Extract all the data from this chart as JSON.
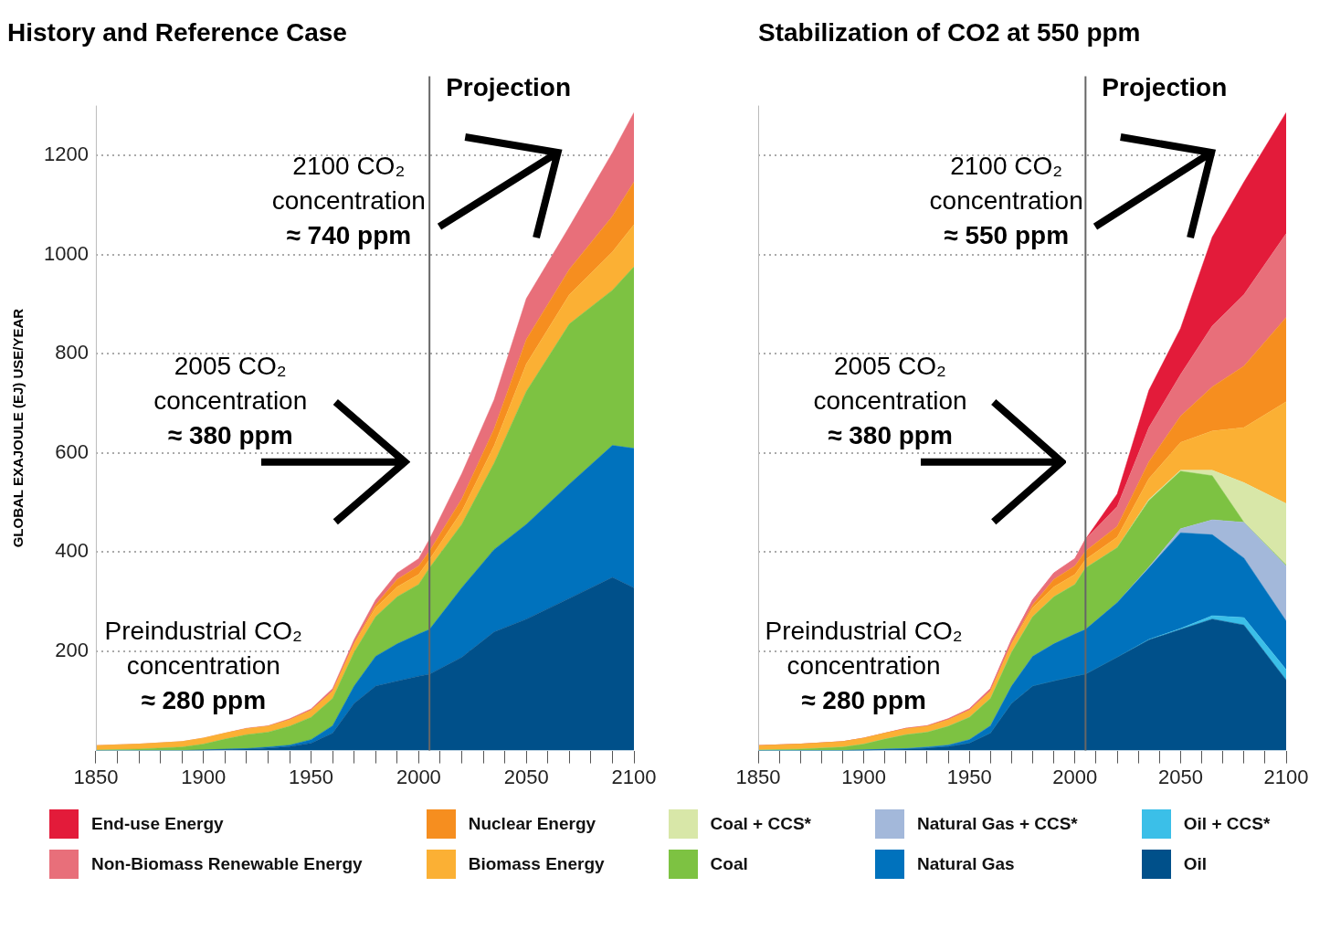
{
  "chart_data": [
    {
      "type": "area",
      "title": "History and Reference Case",
      "ylabel": "GLOBAL EXAJOULE (EJ) USE/YEAR",
      "stacked": true,
      "legend": "bottom",
      "grid": "y",
      "xlim": [
        1850,
        2100
      ],
      "ylim": [
        0,
        1300
      ],
      "xticks": [
        1850,
        {
          "value": 1860,
          "label": null
        },
        {
          "value": 1870,
          "label": null
        },
        {
          "value": 1880,
          "label": null
        },
        {
          "value": 1890,
          "label": null
        },
        1900,
        {
          "value": 1910,
          "label": null
        },
        {
          "value": 1920,
          "label": null
        },
        {
          "value": 1930,
          "label": null
        },
        {
          "value": 1940,
          "label": null
        },
        1950,
        {
          "value": 1960,
          "label": null
        },
        {
          "value": 1970,
          "label": null
        },
        {
          "value": 1980,
          "label": null
        },
        {
          "value": 1990,
          "label": null
        },
        2000,
        {
          "value": 2010,
          "label": null
        },
        {
          "value": 2020,
          "label": null
        },
        {
          "value": 2030,
          "label": null
        },
        {
          "value": 2040,
          "label": null
        },
        2050,
        {
          "value": 2060,
          "label": null
        },
        {
          "value": 2070,
          "label": null
        },
        {
          "value": 2080,
          "label": null
        },
        {
          "value": 2090,
          "label": null
        },
        2100
      ],
      "yticks": [
        200,
        400,
        600,
        800,
        1000,
        1200
      ],
      "x": [
        1850,
        1870,
        1890,
        1900,
        1910,
        1920,
        1930,
        1940,
        1950,
        1960,
        1970,
        1980,
        1990,
        2000,
        2005,
        2020,
        2035,
        2050,
        2070,
        2090,
        2100
      ],
      "series": [
        {
          "name": "Oil",
          "color": "#00508a",
          "values": [
            0,
            0,
            0,
            1,
            2,
            3,
            5,
            8,
            15,
            35,
            95,
            130,
            140,
            150,
            154,
            188,
            239,
            265,
            307,
            349,
            328
          ]
        },
        {
          "name": "Natural Gas",
          "color": "#0072bd",
          "values": [
            0,
            0,
            0,
            0,
            1,
            1,
            2,
            3,
            7,
            15,
            35,
            60,
            75,
            85,
            90,
            140,
            166,
            191,
            230,
            266,
            281
          ]
        },
        {
          "name": "Coal",
          "color": "#7dc242",
          "values": [
            1,
            3,
            7,
            12,
            20,
            28,
            30,
            38,
            45,
            55,
            68,
            80,
            95,
            100,
            124,
            128,
            174,
            268,
            323,
            313,
            366
          ]
        },
        {
          "name": "Biomass Energy",
          "color": "#fbb034",
          "values": [
            9,
            10,
            11,
            12,
            12,
            12,
            12,
            13,
            14,
            15,
            17,
            18,
            20,
            20,
            17,
            26,
            35,
            55,
            59,
            77,
            85
          ]
        },
        {
          "name": "Nuclear Energy",
          "color": "#f68e1f",
          "values": [
            0,
            0,
            0,
            0,
            0,
            0,
            0,
            0,
            0,
            0,
            1,
            6,
            15,
            17,
            17,
            25,
            34,
            50,
            51,
            72,
            86
          ]
        },
        {
          "name": "Non-Biomass Renewable Energy",
          "color": "#e86f7a",
          "values": [
            0,
            0,
            0,
            0,
            0,
            1,
            1,
            2,
            3,
            5,
            8,
            10,
            13,
            15,
            24,
            51,
            59,
            82,
            86,
            128,
            140
          ]
        }
      ],
      "ref_lines": [
        {
          "axis": "x",
          "value": 2005,
          "label": "Projection",
          "color": "#666666"
        }
      ],
      "annotations": [
        "2100 CO₂\nconcentration\n≈ 740 ppm",
        "2005 CO₂\nconcentration\n≈ 380 ppm",
        "Preindustrial CO₂\nconcentration\n≈ 280 ppm"
      ]
    },
    {
      "type": "area",
      "title": "Stabilization of CO2 at 550 ppm",
      "stacked": true,
      "legend": "bottom",
      "grid": "y",
      "tick_labels": "x",
      "xlim": [
        1850,
        2100
      ],
      "ylim": [
        0,
        1300
      ],
      "xticks": [
        1850,
        {
          "value": 1860,
          "label": null
        },
        {
          "value": 1870,
          "label": null
        },
        {
          "value": 1880,
          "label": null
        },
        {
          "value": 1890,
          "label": null
        },
        1900,
        {
          "value": 1910,
          "label": null
        },
        {
          "value": 1920,
          "label": null
        },
        {
          "value": 1930,
          "label": null
        },
        {
          "value": 1940,
          "label": null
        },
        1950,
        {
          "value": 1960,
          "label": null
        },
        {
          "value": 1970,
          "label": null
        },
        {
          "value": 1980,
          "label": null
        },
        {
          "value": 1990,
          "label": null
        },
        2000,
        {
          "value": 2010,
          "label": null
        },
        {
          "value": 2020,
          "label": null
        },
        {
          "value": 2030,
          "label": null
        },
        {
          "value": 2040,
          "label": null
        },
        2050,
        {
          "value": 2060,
          "label": null
        },
        {
          "value": 2070,
          "label": null
        },
        {
          "value": 2080,
          "label": null
        },
        {
          "value": 2090,
          "label": null
        },
        2100
      ],
      "yticks": [
        200,
        400,
        600,
        800,
        1000,
        1200
      ],
      "x": [
        1850,
        1870,
        1890,
        1900,
        1910,
        1920,
        1930,
        1940,
        1950,
        1960,
        1970,
        1980,
        1990,
        2000,
        2005,
        2020,
        2035,
        2050,
        2065,
        2080,
        2100
      ],
      "series": [
        {
          "name": "Oil",
          "color": "#00508a",
          "values": [
            0,
            0,
            0,
            1,
            2,
            3,
            5,
            8,
            15,
            35,
            95,
            130,
            140,
            150,
            154,
            188,
            223,
            244,
            265,
            253,
            142
          ]
        },
        {
          "name": "Oil + CCS*",
          "color": "#3bbfe8",
          "values": [
            0,
            0,
            0,
            0,
            0,
            0,
            0,
            0,
            0,
            0,
            0,
            0,
            0,
            0,
            0,
            0,
            1,
            2,
            7,
            15,
            21
          ]
        },
        {
          "name": "Natural Gas",
          "color": "#0072bd",
          "values": [
            0,
            0,
            0,
            0,
            1,
            1,
            2,
            3,
            7,
            15,
            35,
            60,
            75,
            85,
            90,
            110,
            144,
            193,
            163,
            120,
            98
          ]
        },
        {
          "name": "Natural Gas + CCS*",
          "color": "#a3b8da",
          "values": [
            0,
            0,
            0,
            0,
            0,
            0,
            0,
            0,
            0,
            0,
            0,
            0,
            0,
            0,
            0,
            0,
            2,
            8,
            30,
            72,
            111
          ]
        },
        {
          "name": "Coal",
          "color": "#7dc242",
          "values": [
            1,
            3,
            7,
            12,
            20,
            28,
            30,
            38,
            45,
            55,
            68,
            80,
            95,
            100,
            124,
            111,
            134,
            116,
            89,
            0,
            2
          ]
        },
        {
          "name": "Coal + CCS*",
          "color": "#d8e7a8",
          "values": [
            0,
            0,
            0,
            0,
            0,
            0,
            0,
            0,
            0,
            0,
            0,
            0,
            0,
            0,
            0,
            0,
            2,
            2,
            11,
            80,
            124
          ]
        },
        {
          "name": "Biomass Energy",
          "color": "#fbb034",
          "values": [
            9,
            10,
            11,
            12,
            12,
            12,
            12,
            13,
            14,
            15,
            17,
            18,
            20,
            20,
            17,
            21,
            42,
            56,
            79,
            111,
            205
          ]
        },
        {
          "name": "Nuclear Energy",
          "color": "#f68e1f",
          "values": [
            0,
            0,
            0,
            0,
            0,
            0,
            0,
            0,
            0,
            0,
            1,
            6,
            15,
            17,
            17,
            22,
            34,
            53,
            89,
            124,
            170
          ]
        },
        {
          "name": "Non-Biomass Renewable Energy",
          "color": "#e86f7a",
          "values": [
            0,
            0,
            0,
            0,
            0,
            1,
            1,
            2,
            3,
            5,
            8,
            10,
            13,
            15,
            24,
            40,
            69,
            84,
            123,
            144,
            169
          ]
        },
        {
          "name": "End-use Energy",
          "color": "#e31b3a",
          "values": [
            0,
            0,
            0,
            0,
            0,
            0,
            0,
            0,
            0,
            0,
            0,
            0,
            0,
            0,
            0,
            25,
            75,
            93,
            179,
            227,
            244
          ]
        }
      ],
      "ref_lines": [
        {
          "axis": "x",
          "value": 2005,
          "label": "Projection",
          "color": "#666666"
        }
      ],
      "annotations": [
        "2100 CO₂\nconcentration\n≈ 550 ppm",
        "2005 CO₂\nconcentration\n≈ 380 ppm",
        "Preindustrial CO₂\nconcentration\n≈ 280 ppm"
      ]
    }
  ]
}
